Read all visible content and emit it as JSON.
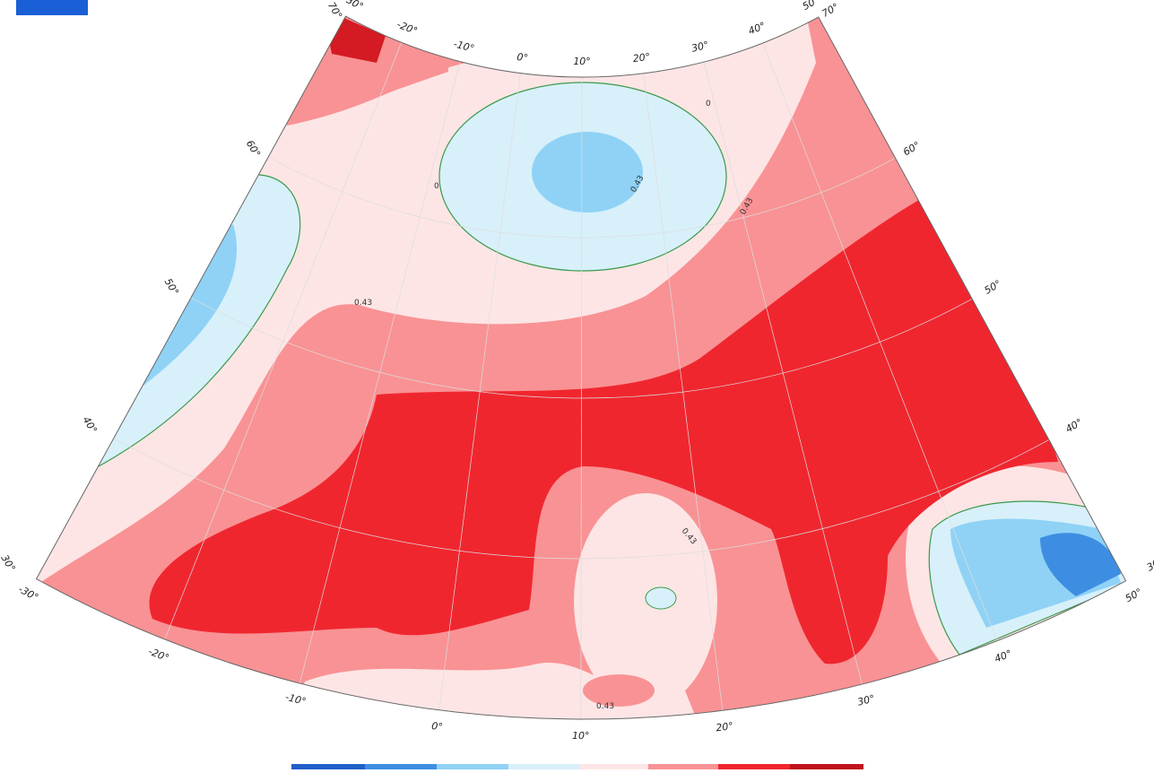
{
  "map": {
    "top_longitude_labels": [
      "-30°",
      "-20°",
      "-10°",
      "0°",
      "10°",
      "20°",
      "30°",
      "40°",
      "50°"
    ],
    "bottom_longitude_labels": [
      "-30°",
      "-20°",
      "-10°",
      "0°",
      "10°",
      "20°",
      "30°",
      "40°",
      "50°"
    ],
    "left_latitude_labels": [
      "70°",
      "60°",
      "50°",
      "40°",
      "30°"
    ],
    "right_latitude_labels": [
      "70°",
      "60°",
      "50°",
      "40°",
      "30°"
    ],
    "contour_labels": [
      "0.43",
      "0.43",
      "0.43",
      "0.43",
      "0.43",
      "0",
      "0"
    ]
  }
}
